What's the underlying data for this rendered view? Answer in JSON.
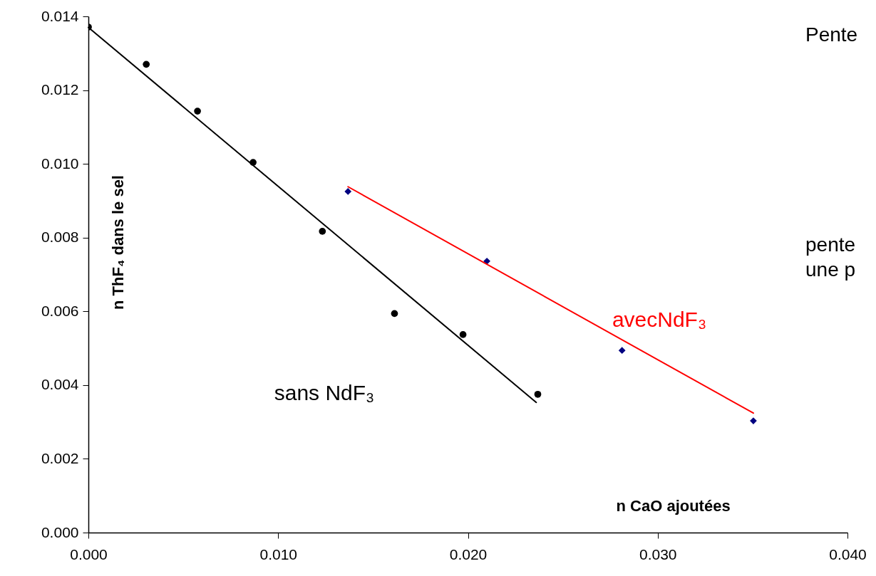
{
  "chart_data": {
    "type": "scatter",
    "xlabel": "n CaO ajoutées",
    "ylabel": "n ThF₄ dans le sel",
    "xlim": [
      0,
      0.04
    ],
    "ylim": [
      0,
      0.014
    ],
    "xticks": [
      {
        "value": 0,
        "label": "0.000"
      },
      {
        "value": 0.01,
        "label": "0.010"
      },
      {
        "value": 0.02,
        "label": "0.020"
      },
      {
        "value": 0.03,
        "label": "0.030"
      },
      {
        "value": 0.04,
        "label": "0.040"
      }
    ],
    "yticks": [
      {
        "value": 0,
        "label": "0.000"
      },
      {
        "value": 0.002,
        "label": "0.002"
      },
      {
        "value": 0.004,
        "label": "0.004"
      },
      {
        "value": 0.006,
        "label": "0.006"
      },
      {
        "value": 0.008,
        "label": "0.008"
      },
      {
        "value": 0.01,
        "label": "0.010"
      },
      {
        "value": 0.012,
        "label": "0.012"
      },
      {
        "value": 0.014,
        "label": "0.014"
      }
    ],
    "grid": false,
    "series": [
      {
        "type": "scatter",
        "marker": "circle",
        "color": "#000000",
        "x": [
          0,
          0.00305,
          0.00575,
          0.00868,
          0.01233,
          0.01613,
          0.01974,
          0.02368
        ],
        "values": [
          0.01371,
          0.0127,
          0.01143,
          0.01004,
          0.00817,
          0.00594,
          0.00537,
          0.00375
        ]
      },
      {
        "type": "scatter",
        "marker": "diamond",
        "color": "#000080",
        "x": [
          0.01368,
          0.021,
          0.02812,
          0.03504
        ],
        "values": [
          0.00925,
          0.00736,
          0.00494,
          0.00303
        ]
      },
      {
        "type": "line",
        "marker": "none",
        "color": "#000000",
        "x": [
          0,
          0.0236
        ],
        "values": [
          0.0137,
          0.00353
        ]
      },
      {
        "type": "line",
        "marker": "none",
        "color": "#ff0000",
        "x": [
          0.01368,
          0.03504
        ],
        "values": [
          0.00938,
          0.00324
        ]
      }
    ],
    "annotations": [
      "sans NdF₃",
      "avecNdF₃",
      "Pente",
      "pente",
      "une p"
    ]
  }
}
